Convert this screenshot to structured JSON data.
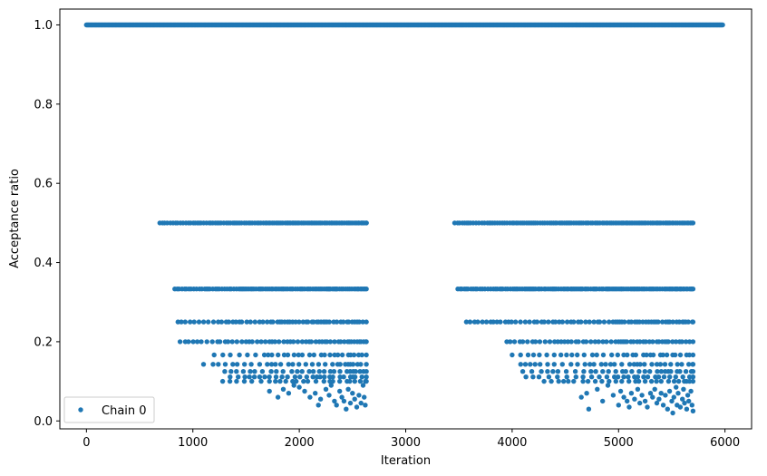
{
  "chart_data": {
    "type": "scatter",
    "title": "",
    "xlabel": "Iteration",
    "ylabel": "Acceptance ratio",
    "xlim": [
      -250,
      6250
    ],
    "ylim": [
      -0.02,
      1.04
    ],
    "xticks": [
      0,
      1000,
      2000,
      3000,
      4000,
      5000,
      6000
    ],
    "yticks": [
      0.0,
      0.2,
      0.4,
      0.6,
      0.8,
      1.0
    ],
    "xtick_labels": [
      "0",
      "1000",
      "2000",
      "3000",
      "4000",
      "5000",
      "6000"
    ],
    "ytick_labels": [
      "0.0",
      "0.2",
      "0.4",
      "0.6",
      "0.8",
      "1.0"
    ],
    "grid": false,
    "legend_position": "lower-left",
    "color": "#1f77b4",
    "series": [
      {
        "name": "Chain 0",
        "levels": [
          {
            "y": 1.0,
            "segments": [
              [
                0,
                5980
              ]
            ]
          },
          {
            "y": 0.5,
            "segments": [
              [
                690,
                2630
              ],
              [
                3460,
                5700
              ]
            ]
          },
          {
            "y": 0.3333,
            "segments": [
              [
                830,
                2630
              ],
              [
                3490,
                5700
              ]
            ]
          },
          {
            "y": 0.25,
            "segments": [
              [
                860,
                2630
              ],
              [
                3570,
                5700
              ]
            ]
          },
          {
            "y": 0.2,
            "segments": [
              [
                880,
                2630
              ],
              [
                3950,
                5700
              ]
            ]
          },
          {
            "y": 0.1667,
            "segments": [
              [
                1200,
                2630
              ],
              [
                4000,
                5700
              ]
            ]
          },
          {
            "y": 0.1429,
            "segments": [
              [
                1100,
                2630
              ],
              [
                4080,
                5700
              ]
            ]
          },
          {
            "y": 0.125,
            "segments": [
              [
                1300,
                2630
              ],
              [
                4100,
                5700
              ]
            ]
          },
          {
            "y": 0.1111,
            "segments": [
              [
                1350,
                2630
              ],
              [
                4130,
                5700
              ]
            ]
          },
          {
            "y": 0.1,
            "segments": [
              [
                1280,
                2630
              ],
              [
                4300,
                5700
              ]
            ]
          }
        ],
        "scatter_points": [
          [
            1720,
            0.075
          ],
          [
            1800,
            0.06
          ],
          [
            1850,
            0.08
          ],
          [
            1900,
            0.07
          ],
          [
            1950,
            0.09
          ],
          [
            2000,
            0.085
          ],
          [
            2050,
            0.075
          ],
          [
            2100,
            0.06
          ],
          [
            2150,
            0.07
          ],
          [
            2180,
            0.04
          ],
          [
            2200,
            0.055
          ],
          [
            2250,
            0.08
          ],
          [
            2280,
            0.065
          ],
          [
            2300,
            0.09
          ],
          [
            2330,
            0.05
          ],
          [
            2350,
            0.04
          ],
          [
            2380,
            0.075
          ],
          [
            2400,
            0.06
          ],
          [
            2420,
            0.05
          ],
          [
            2440,
            0.03
          ],
          [
            2460,
            0.08
          ],
          [
            2480,
            0.045
          ],
          [
            2500,
            0.07
          ],
          [
            2520,
            0.055
          ],
          [
            2540,
            0.035
          ],
          [
            2560,
            0.065
          ],
          [
            2580,
            0.045
          ],
          [
            2600,
            0.09
          ],
          [
            2610,
            0.06
          ],
          [
            2620,
            0.04
          ],
          [
            4650,
            0.06
          ],
          [
            4700,
            0.07
          ],
          [
            4720,
            0.03
          ],
          [
            4800,
            0.08
          ],
          [
            4850,
            0.05
          ],
          [
            4900,
            0.09
          ],
          [
            4950,
            0.065
          ],
          [
            5000,
            0.04
          ],
          [
            5020,
            0.075
          ],
          [
            5050,
            0.06
          ],
          [
            5080,
            0.05
          ],
          [
            5100,
            0.035
          ],
          [
            5120,
            0.07
          ],
          [
            5150,
            0.055
          ],
          [
            5180,
            0.08
          ],
          [
            5200,
            0.045
          ],
          [
            5220,
            0.065
          ],
          [
            5250,
            0.05
          ],
          [
            5270,
            0.035
          ],
          [
            5300,
            0.07
          ],
          [
            5320,
            0.06
          ],
          [
            5340,
            0.08
          ],
          [
            5360,
            0.045
          ],
          [
            5380,
            0.055
          ],
          [
            5400,
            0.07
          ],
          [
            5420,
            0.04
          ],
          [
            5440,
            0.065
          ],
          [
            5460,
            0.03
          ],
          [
            5480,
            0.075
          ],
          [
            5500,
            0.05
          ],
          [
            5510,
            0.02
          ],
          [
            5520,
            0.06
          ],
          [
            5540,
            0.085
          ],
          [
            5550,
            0.04
          ],
          [
            5560,
            0.07
          ],
          [
            5580,
            0.035
          ],
          [
            5600,
            0.055
          ],
          [
            5610,
            0.08
          ],
          [
            5620,
            0.045
          ],
          [
            5640,
            0.03
          ],
          [
            5650,
            0.065
          ],
          [
            5660,
            0.05
          ],
          [
            5680,
            0.075
          ],
          [
            5690,
            0.04
          ],
          [
            5700,
            0.025
          ]
        ]
      }
    ]
  }
}
